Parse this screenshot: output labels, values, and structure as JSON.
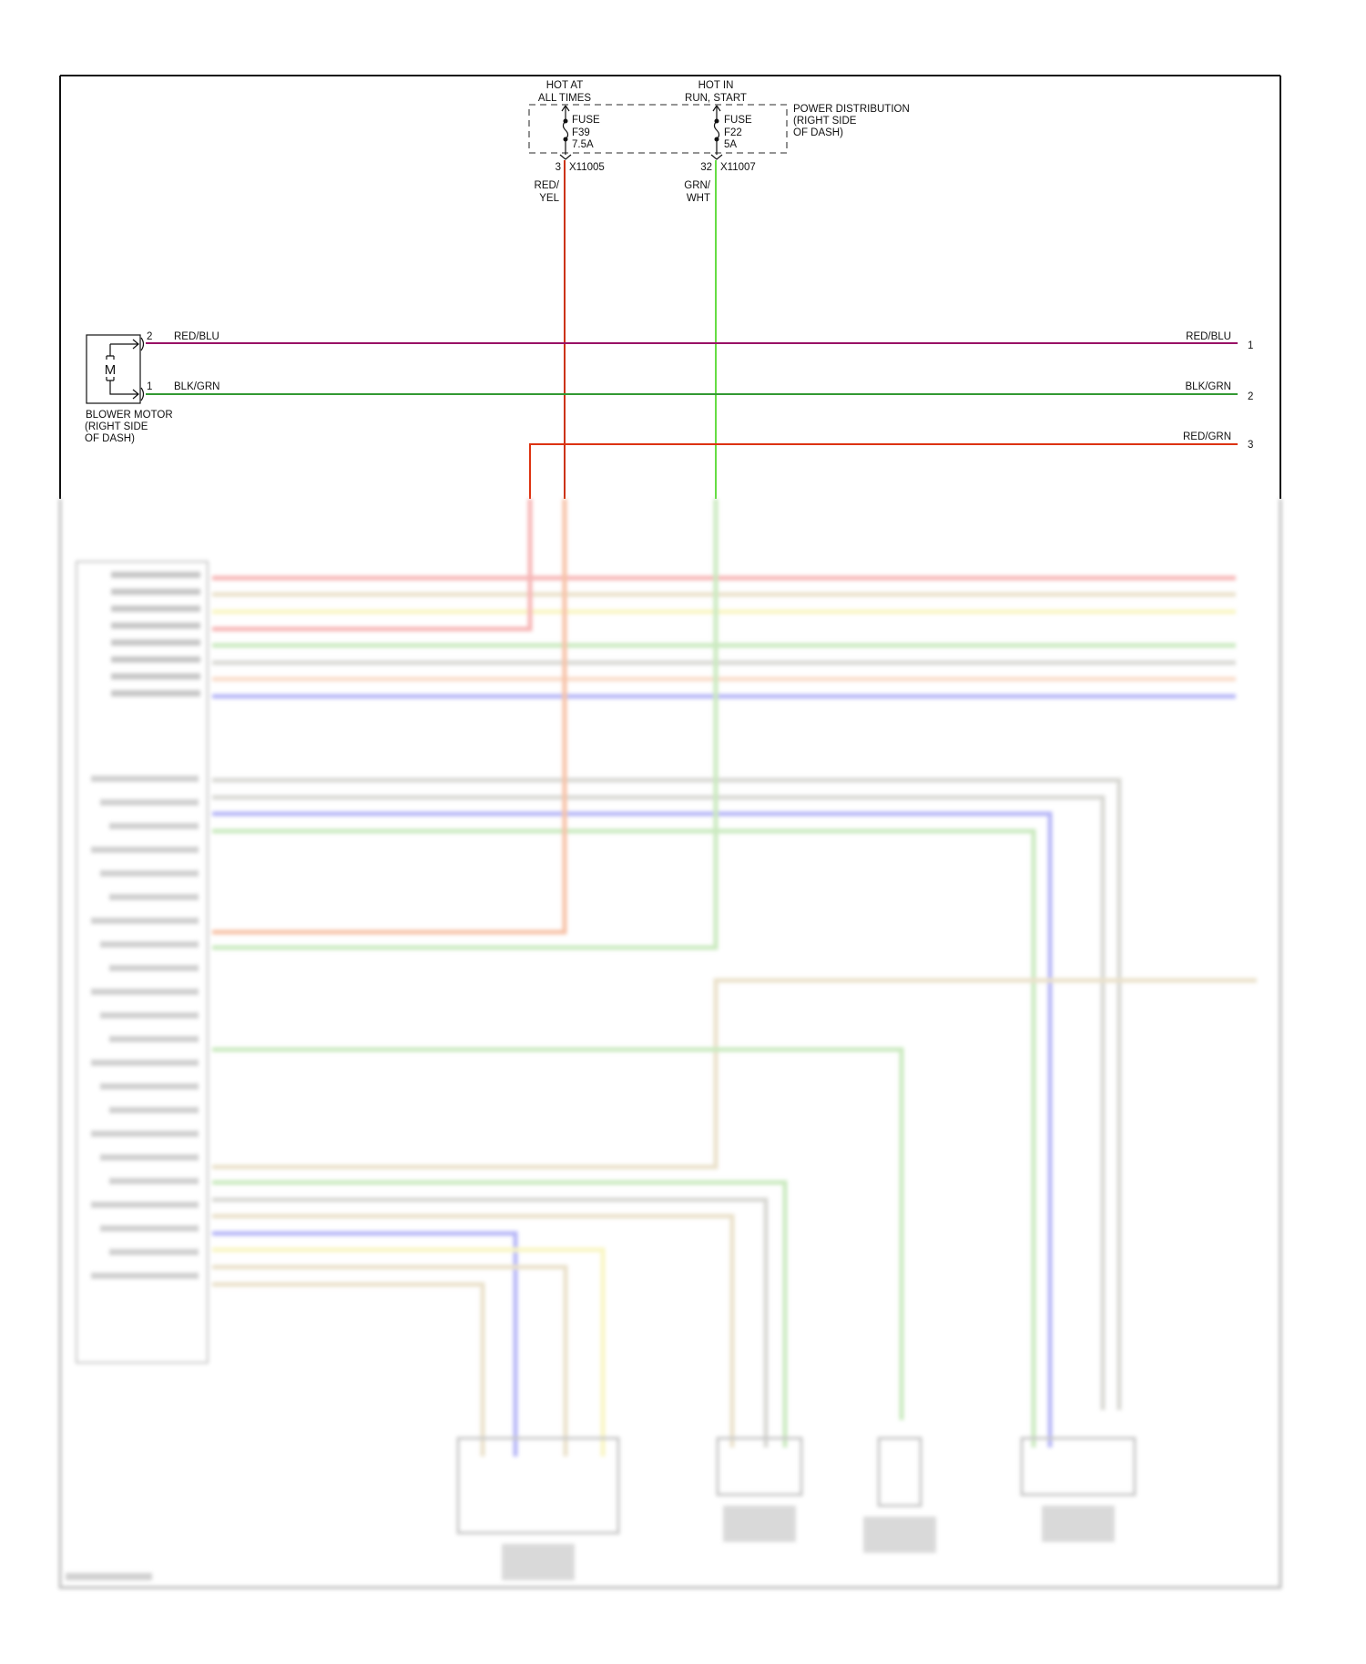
{
  "power_distribution": {
    "label_lines": [
      "POWER DISTRIBUTION",
      "(RIGHT SIDE",
      "OF DASH)"
    ],
    "feeds": [
      {
        "hot_label": [
          "HOT AT",
          "ALL TIMES"
        ],
        "fuse": [
          "FUSE",
          "F39",
          "7.5A"
        ],
        "pin": "3",
        "connector": "X11005",
        "wire": [
          "RED/",
          "YEL"
        ],
        "color": "#cc3311"
      },
      {
        "hot_label": [
          "HOT IN",
          "RUN, START"
        ],
        "fuse": [
          "FUSE",
          "F22",
          "5A"
        ],
        "pin": "32",
        "connector": "X11007",
        "wire": [
          "GRN/",
          "WHT"
        ],
        "color": "#66dd44"
      }
    ]
  },
  "blower_motor": {
    "symbol": "M",
    "label_lines": [
      "BLOWER MOTOR",
      "(RIGHT SIDE",
      "OF DASH)"
    ],
    "pins": [
      "2",
      "1"
    ]
  },
  "wires": [
    {
      "label": "RED/BLU",
      "left_pin": "2",
      "right_label": "RED/BLU",
      "right_pin": "1",
      "color": "#991166"
    },
    {
      "label": "BLK/GRN",
      "left_pin": "1",
      "right_label": "BLK/GRN",
      "right_pin": "2",
      "color": "#339933"
    },
    {
      "right_label": "RED/GRN",
      "right_pin": "3",
      "color": "#dd3311"
    }
  ],
  "faded_wire_colors": {
    "red": "#f07a7a",
    "tan": "#d9c8a0",
    "yellow": "#f4ee90",
    "green": "#9ed88a",
    "gray": "#b8b8b0",
    "blue": "#7b7bf0",
    "peach": "#f5c0a0",
    "orange": "#f09060"
  }
}
